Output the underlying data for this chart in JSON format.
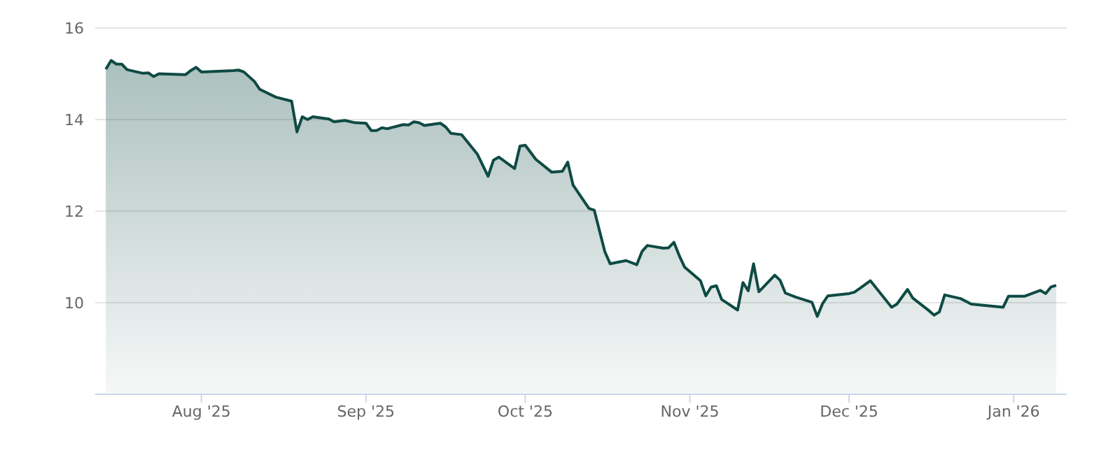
{
  "chart_data": {
    "type": "area",
    "x": [
      "2025-07-14",
      "2025-07-15",
      "2025-07-16",
      "2025-07-17",
      "2025-07-18",
      "2025-07-21",
      "2025-07-22",
      "2025-07-23",
      "2025-07-24",
      "2025-07-29",
      "2025-07-30",
      "2025-07-31",
      "2025-08-01",
      "2025-08-07",
      "2025-08-08",
      "2025-08-09",
      "2025-08-11",
      "2025-08-12",
      "2025-08-15",
      "2025-08-18",
      "2025-08-19",
      "2025-08-20",
      "2025-08-21",
      "2025-08-22",
      "2025-08-25",
      "2025-08-26",
      "2025-08-28",
      "2025-08-30",
      "2025-09-01",
      "2025-09-02",
      "2025-09-03",
      "2025-09-04",
      "2025-09-05",
      "2025-09-08",
      "2025-09-09",
      "2025-09-10",
      "2025-09-11",
      "2025-09-12",
      "2025-09-15",
      "2025-09-16",
      "2025-09-17",
      "2025-09-19",
      "2025-09-22",
      "2025-09-24",
      "2025-09-25",
      "2025-09-26",
      "2025-09-29",
      "2025-09-30",
      "2025-10-01",
      "2025-10-03",
      "2025-10-06",
      "2025-10-08",
      "2025-10-09",
      "2025-10-10",
      "2025-10-13",
      "2025-10-14",
      "2025-10-16",
      "2025-10-17",
      "2025-10-20",
      "2025-10-22",
      "2025-10-23",
      "2025-10-24",
      "2025-10-27",
      "2025-10-28",
      "2025-10-29",
      "2025-10-30",
      "2025-10-31",
      "2025-11-03",
      "2025-11-04",
      "2025-11-05",
      "2025-11-06",
      "2025-11-07",
      "2025-11-10",
      "2025-11-11",
      "2025-11-12",
      "2025-11-13",
      "2025-11-14",
      "2025-11-17",
      "2025-11-18",
      "2025-11-19",
      "2025-11-21",
      "2025-11-24",
      "2025-11-25",
      "2025-11-26",
      "2025-11-27",
      "2025-12-01",
      "2025-12-02",
      "2025-12-03",
      "2025-12-05",
      "2025-12-09",
      "2025-12-10",
      "2025-12-12",
      "2025-12-13",
      "2025-12-16",
      "2025-12-17",
      "2025-12-18",
      "2025-12-19",
      "2025-12-22",
      "2025-12-23",
      "2025-12-24",
      "2025-12-30",
      "2025-12-31",
      "2026-01-03",
      "2026-01-06",
      "2026-01-07",
      "2026-01-08",
      "2026-01-09"
    ],
    "series": [
      {
        "color": "#0f4a44",
        "values": [
          15.1,
          15.29,
          15.21,
          15.21,
          15.09,
          15.01,
          15.02,
          14.94,
          15.0,
          14.98,
          15.07,
          15.14,
          15.04,
          15.07,
          15.08,
          15.04,
          14.83,
          14.66,
          14.49,
          14.4,
          13.73,
          14.06,
          14.0,
          14.06,
          14.01,
          13.95,
          13.98,
          13.93,
          13.92,
          13.76,
          13.76,
          13.82,
          13.8,
          13.89,
          13.88,
          13.95,
          13.93,
          13.87,
          13.92,
          13.84,
          13.7,
          13.67,
          13.24,
          12.76,
          13.11,
          13.18,
          12.93,
          13.42,
          13.44,
          13.13,
          12.85,
          12.87,
          13.07,
          12.57,
          12.06,
          12.02,
          11.11,
          10.85,
          10.92,
          10.83,
          11.12,
          11.25,
          11.19,
          11.2,
          11.32,
          11.03,
          10.78,
          10.48,
          10.15,
          10.34,
          10.37,
          10.07,
          9.84,
          10.44,
          10.26,
          10.85,
          10.24,
          10.6,
          10.49,
          10.21,
          10.12,
          10.01,
          9.7,
          9.98,
          10.15,
          10.2,
          10.23,
          10.31,
          10.48,
          9.9,
          9.97,
          10.29,
          10.1,
          9.83,
          9.73,
          9.8,
          10.17,
          10.09,
          10.03,
          9.97,
          9.9,
          10.14,
          10.14,
          10.27,
          10.2,
          10.34,
          10.38
        ]
      }
    ],
    "xlim": [
      "2025-07-12",
      "2026-01-11"
    ],
    "xticks": [
      {
        "value": "2025-08-01",
        "label": "Aug '25"
      },
      {
        "value": "2025-09-01",
        "label": "Sep '25"
      },
      {
        "value": "2025-10-01",
        "label": "Oct '25"
      },
      {
        "value": "2025-11-01",
        "label": "Nov '25"
      },
      {
        "value": "2025-12-01",
        "label": "Dec '25"
      },
      {
        "value": "2026-01-01",
        "label": "Jan '26"
      }
    ],
    "ylim": [
      8,
      16
    ],
    "yticks": [
      10,
      12,
      14,
      16
    ],
    "grid": "y"
  }
}
